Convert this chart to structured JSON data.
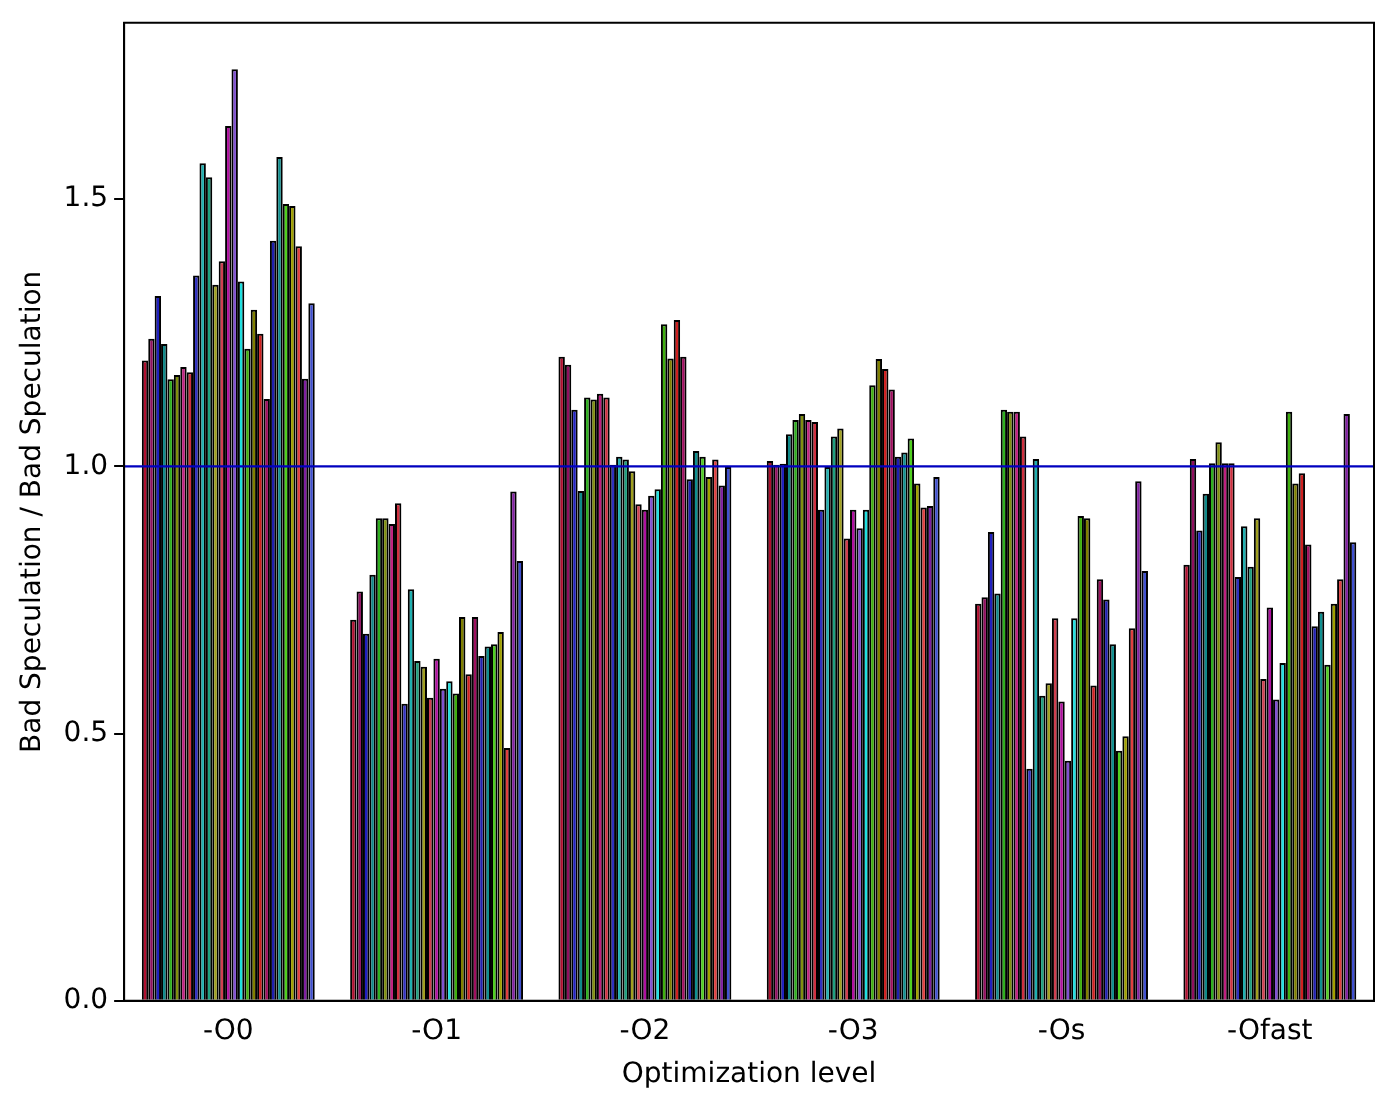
{
  "chart_data": {
    "type": "bar",
    "xlabel": "Optimization level",
    "ylabel": "Bad Speculation / Bad Speculation",
    "categories": [
      "-O0",
      "-O1",
      "-O2",
      "-O3",
      "-Os",
      "-Ofast"
    ],
    "ylim": [
      0,
      1.83
    ],
    "yticks": [
      {
        "value": 0,
        "label": "0.0"
      },
      0.5,
      {
        "value": 1,
        "label": "1.0"
      },
      1.5
    ],
    "grid": false,
    "legend": false,
    "ref_lines": [
      {
        "axis": "y",
        "value": 1,
        "color": "#0000bf"
      }
    ],
    "series": [
      {
        "color": "#b01030",
        "values": [
          1.198,
          0.713,
          1.205,
          1.01,
          0.743,
          0.816
        ]
      },
      {
        "color": "#901060",
        "values": [
          1.239,
          0.766,
          1.19,
          1.003,
          0.755,
          1.014
        ]
      },
      {
        "color": "#2020c0",
        "values": [
          1.319,
          0.687,
          1.106,
          1.005,
          0.877,
          0.88
        ]
      },
      {
        "color": "#108a8a",
        "values": [
          1.229,
          0.797,
          0.954,
          1.06,
          0.762,
          0.949
        ]
      },
      {
        "color": "#30b020",
        "values": [
          1.163,
          0.903,
          1.129,
          1.087,
          1.106,
          1.006
        ]
      },
      {
        "color": "#809010",
        "values": [
          1.171,
          0.903,
          1.125,
          1.098,
          1.102,
          1.045
        ]
      },
      {
        "color": "#c02080",
        "values": [
          1.186,
          0.892,
          1.136,
          1.087,
          1.102,
          1.006
        ]
      },
      {
        "color": "#d03040",
        "values": [
          1.176,
          0.931,
          1.129,
          1.083,
          1.056,
          1.006
        ]
      },
      {
        "color": "#3030c0",
        "values": [
          1.357,
          0.556,
          1.003,
          0.919,
          0.434,
          0.793
        ]
      },
      {
        "color": "#20b0b0",
        "values": [
          1.567,
          0.77,
          1.018,
          0.999,
          1.014,
          0.888
        ]
      },
      {
        "color": "#20a080",
        "values": [
          1.541,
          0.636,
          1.013,
          1.056,
          0.571,
          0.812
        ]
      },
      {
        "color": "#a0a020",
        "values": [
          1.34,
          0.625,
          0.991,
          1.071,
          0.594,
          0.903
        ]
      },
      {
        "color": "#d04050",
        "values": [
          1.384,
          0.567,
          0.929,
          0.865,
          0.716,
          0.602
        ]
      },
      {
        "color": "#b010a0",
        "values": [
          1.637,
          0.64,
          0.919,
          0.919,
          0.56,
          0.736
        ]
      },
      {
        "color": "#8050d0",
        "values": [
          1.743,
          0.584,
          0.945,
          0.884,
          0.449,
          0.564
        ]
      },
      {
        "color": "#20e0e0",
        "values": [
          1.346,
          0.598,
          0.957,
          0.919,
          0.716,
          0.632
        ]
      },
      {
        "color": "#40b010",
        "values": [
          1.22,
          0.575,
          1.266,
          1.152,
          0.907,
          1.102
        ]
      },
      {
        "color": "#808000",
        "values": [
          1.293,
          0.718,
          1.202,
          1.201,
          0.903,
          0.968
        ]
      },
      {
        "color": "#d02020",
        "values": [
          1.248,
          0.611,
          1.274,
          1.182,
          0.59,
          0.987
        ]
      },
      {
        "color": "#a01060",
        "values": [
          1.126,
          0.718,
          1.205,
          1.144,
          0.789,
          0.854
        ]
      },
      {
        "color": "#2020b0",
        "values": [
          1.422,
          0.645,
          0.976,
          1.018,
          0.751,
          0.701
        ]
      },
      {
        "color": "#109090",
        "values": [
          1.579,
          0.663,
          1.029,
          1.026,
          0.667,
          0.728
        ]
      },
      {
        "color": "#50d020",
        "values": [
          1.491,
          0.667,
          1.018,
          1.052,
          0.468,
          0.629
        ]
      },
      {
        "color": "#a0a000",
        "values": [
          1.487,
          0.69,
          0.98,
          0.968,
          0.495,
          0.743
        ]
      },
      {
        "color": "#e04040",
        "values": [
          1.412,
          0.473,
          1.013,
          0.923,
          0.697,
          0.789
        ]
      },
      {
        "color": "#8020a0",
        "values": [
          1.164,
          0.953,
          0.964,
          0.926,
          0.972,
          1.098
        ]
      },
      {
        "color": "#4050d0",
        "values": [
          1.305,
          0.823,
          0.999,
          0.98,
          0.804,
          0.858
        ]
      }
    ]
  }
}
